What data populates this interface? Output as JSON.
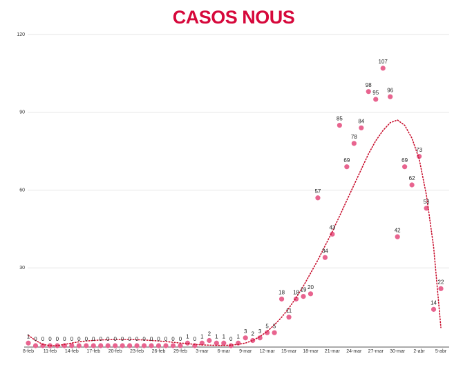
{
  "chart_data": {
    "type": "scatter",
    "title": "CASOS NOUS",
    "title_color": "#d6083b",
    "categories": [
      "8-feb",
      null,
      null,
      "11-feb",
      null,
      null,
      "14-feb",
      null,
      null,
      "17-feb",
      null,
      null,
      "20-feb",
      null,
      null,
      "23-feb",
      null,
      null,
      "26-feb",
      null,
      null,
      "29-feb",
      null,
      null,
      "3-mar",
      null,
      null,
      "6-mar",
      null,
      null,
      "9-mar",
      null,
      null,
      "12-mar",
      null,
      null,
      "15-mar",
      null,
      null,
      "18-mar",
      null,
      null,
      "21-mar",
      null,
      null,
      "24-mar",
      null,
      null,
      "27-mar",
      null,
      null,
      "30-mar",
      null,
      null,
      "2-abr",
      null,
      null,
      "5-abr"
    ],
    "values": [
      1,
      0,
      0,
      0,
      0,
      0,
      0,
      0,
      0,
      0,
      0,
      0,
      0,
      0,
      0,
      0,
      0,
      0,
      0,
      0,
      0,
      0,
      1,
      0,
      1,
      2,
      1,
      1,
      0,
      1,
      3,
      2,
      3,
      5,
      5,
      18,
      11,
      18,
      19,
      20,
      57,
      34,
      43,
      85,
      69,
      78,
      84,
      98,
      95,
      107,
      96,
      42,
      69,
      62,
      73,
      53,
      14,
      22
    ],
    "color": "#e8648f",
    "trendline": {
      "color": "#c8102e",
      "values": [
        4,
        2,
        0.5,
        0,
        0,
        0.5,
        1,
        1.5,
        1.8,
        2,
        2.2,
        2.3,
        2.4,
        2.4,
        2.4,
        2.3,
        2.2,
        2,
        1.8,
        1.6,
        1.3,
        1,
        0.8,
        0.5,
        0.3,
        0.2,
        0.1,
        0.1,
        0.2,
        0.5,
        1,
        2,
        3.5,
        5.5,
        8,
        11,
        14.5,
        18.5,
        23,
        28,
        33,
        38.5,
        44,
        50,
        56,
        62,
        68,
        74,
        79,
        83,
        86,
        87,
        85,
        80,
        72,
        58,
        38,
        7
      ]
    },
    "ylim": [
      0,
      120
    ],
    "yticks": [
      30,
      60,
      90,
      120
    ],
    "grid": true
  }
}
